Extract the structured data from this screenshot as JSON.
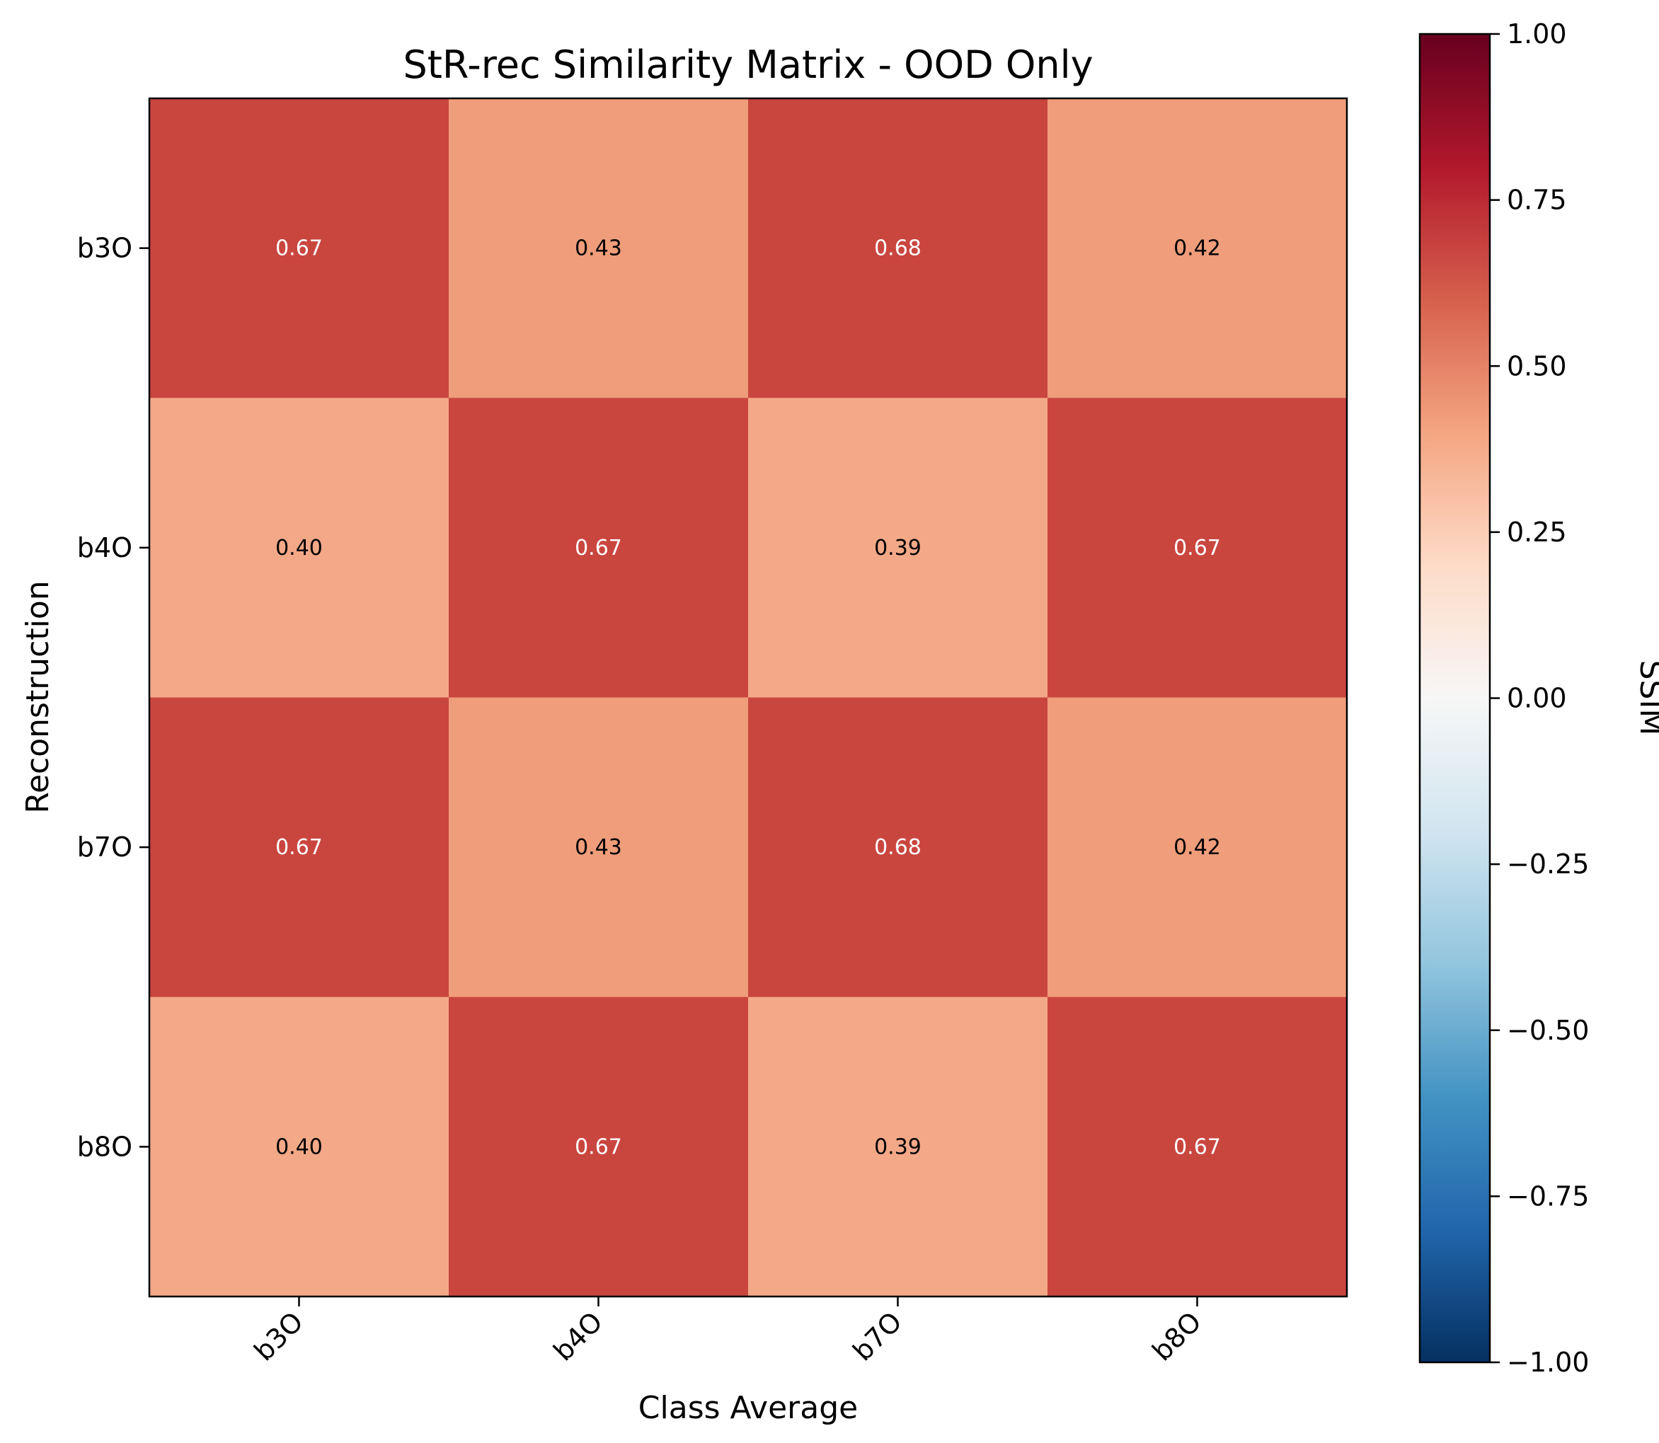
{
  "chart_data": {
    "type": "heatmap",
    "title": "StR-rec Similarity Matrix - OOD Only",
    "xlabel": "Class Average",
    "ylabel": "Reconstruction",
    "x_categories": [
      "b3O",
      "b4O",
      "b7O",
      "b8O"
    ],
    "y_categories": [
      "b3O",
      "b4O",
      "b7O",
      "b8O"
    ],
    "values": [
      [
        0.67,
        0.43,
        0.68,
        0.42
      ],
      [
        0.4,
        0.67,
        0.39,
        0.67
      ],
      [
        0.67,
        0.43,
        0.68,
        0.42
      ],
      [
        0.4,
        0.67,
        0.39,
        0.67
      ]
    ],
    "value_labels": [
      [
        "0.67",
        "0.43",
        "0.68",
        "0.42"
      ],
      [
        "0.40",
        "0.67",
        "0.39",
        "0.67"
      ],
      [
        "0.67",
        "0.43",
        "0.68",
        "0.42"
      ],
      [
        "0.40",
        "0.67",
        "0.39",
        "0.67"
      ]
    ],
    "colormap": "RdBu_r",
    "vmin": -1.0,
    "vmax": 1.0,
    "colorbar": {
      "label": "SSIM",
      "ticks": [
        1.0,
        0.75,
        0.5,
        0.25,
        0.0,
        -0.25,
        -0.5,
        -0.75,
        -1.0
      ],
      "tick_labels": [
        "1.00",
        "0.75",
        "0.50",
        "0.25",
        "0.00",
        "−0.25",
        "−0.50",
        "−0.75",
        "−1.00"
      ]
    },
    "colors": {
      "cell_high": "#c9463f",
      "cell_mid": "#ef9d7a",
      "cell_low": "#f3a887",
      "label_on_dark": "#ffffff",
      "label_on_light": "#000000"
    }
  }
}
